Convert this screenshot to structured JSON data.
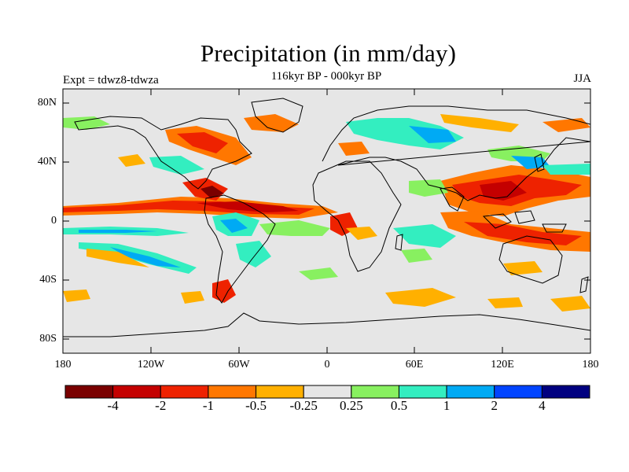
{
  "title": "Precipitation (in mm/day)",
  "subtitle": "116kyr BP - 000kyr BP",
  "left_label": "Expt = tdwz8-tdwza",
  "right_label": "JJA",
  "lat_ticks": [
    "80N",
    "40N",
    "0",
    "40S",
    "80S"
  ],
  "lon_ticks": [
    "180",
    "120W",
    "60W",
    "0",
    "60E",
    "120E",
    "180"
  ],
  "colorbar": {
    "colors": [
      "#7a0000",
      "#c40000",
      "#ee2200",
      "#ff7700",
      "#ffb000",
      "#e6e6e6",
      "#88f060",
      "#33eec0",
      "#00aaf4",
      "#0044ff",
      "#000080"
    ],
    "labels": [
      "-4",
      "-2",
      "-1",
      "-0.5",
      "-0.25",
      "0.25",
      "0.5",
      "1",
      "2",
      "4"
    ]
  },
  "colors": {
    "background": "#e6e6e6",
    "coast": "#000000"
  }
}
